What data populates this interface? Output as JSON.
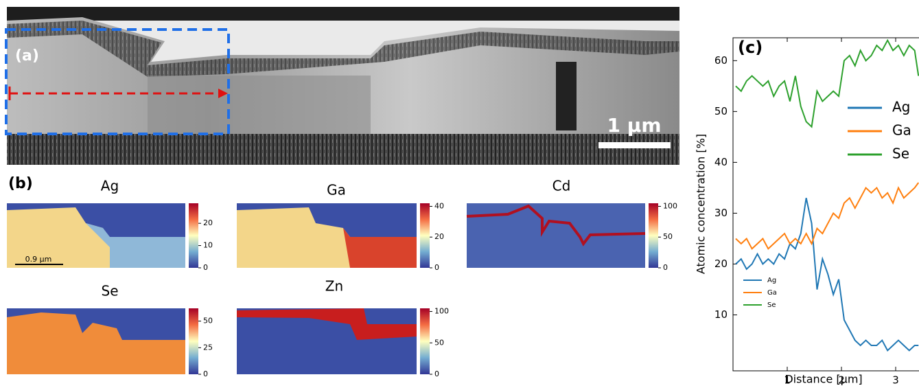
{
  "panels": {
    "a": {
      "label": "(a)",
      "scale_bar": "1 µm"
    },
    "b": {
      "label": "(b)",
      "scale_bar": "0.9 µm",
      "maps": [
        {
          "title": "Ag",
          "colorbar_lim": [
            0,
            29
          ],
          "colorbar_ticks": [
            0,
            10,
            20
          ]
        },
        {
          "title": "Ga",
          "colorbar_lim": [
            0,
            42
          ],
          "colorbar_ticks": [
            0,
            20,
            40
          ]
        },
        {
          "title": "Cd",
          "colorbar_lim": [
            0,
            105
          ],
          "colorbar_ticks": [
            0,
            50,
            100
          ]
        },
        {
          "title": "Se",
          "colorbar_lim": [
            0,
            62
          ],
          "colorbar_ticks": [
            0,
            25,
            50
          ]
        },
        {
          "title": "Zn",
          "colorbar_lim": [
            0,
            105
          ],
          "colorbar_ticks": [
            0,
            50,
            100
          ]
        }
      ]
    }
  },
  "chart_data": {
    "type": "line",
    "label": "(c)",
    "xlabel": "Distance [µm]",
    "ylabel": "Atomic concentration [%]",
    "x": [
      0.05,
      0.15,
      0.25,
      0.35,
      0.45,
      0.55,
      0.65,
      0.75,
      0.85,
      0.95,
      1.05,
      1.15,
      1.25,
      1.35,
      1.45,
      1.55,
      1.65,
      1.75,
      1.85,
      1.95,
      2.05,
      2.15,
      2.25,
      2.35,
      2.45,
      2.55,
      2.65,
      2.75,
      2.85,
      2.95,
      3.05,
      3.15,
      3.25,
      3.35,
      3.42
    ],
    "series": [
      {
        "name": "Ag",
        "color": "#1f77b4",
        "values": [
          20,
          21,
          19,
          20,
          22,
          20,
          21,
          20,
          22,
          21,
          24,
          23,
          26,
          33,
          28,
          15,
          21,
          18,
          14,
          17,
          9,
          7,
          5,
          4,
          5,
          4,
          4,
          5,
          3,
          4,
          5,
          4,
          3,
          4,
          4
        ]
      },
      {
        "name": "Ga",
        "color": "#ff7f0e",
        "values": [
          25,
          24,
          25,
          23,
          24,
          25,
          23,
          24,
          25,
          26,
          24,
          25,
          24,
          26,
          24,
          27,
          26,
          28,
          30,
          29,
          32,
          33,
          31,
          33,
          35,
          34,
          35,
          33,
          34,
          32,
          35,
          33,
          34,
          35,
          36
        ]
      },
      {
        "name": "Se",
        "color": "#2ca02c",
        "values": [
          55,
          54,
          56,
          57,
          56,
          55,
          56,
          53,
          55,
          56,
          52,
          57,
          51,
          48,
          47,
          54,
          52,
          53,
          54,
          53,
          60,
          61,
          59,
          62,
          60,
          61,
          63,
          62,
          64,
          62,
          63,
          61,
          63,
          62,
          57
        ]
      }
    ],
    "xlim": [
      0,
      3.43
    ],
    "ylim": [
      -1,
      64.5
    ],
    "xticks": [
      1,
      2,
      3
    ],
    "yticks": [
      10,
      20,
      30,
      40,
      50,
      60
    ]
  }
}
